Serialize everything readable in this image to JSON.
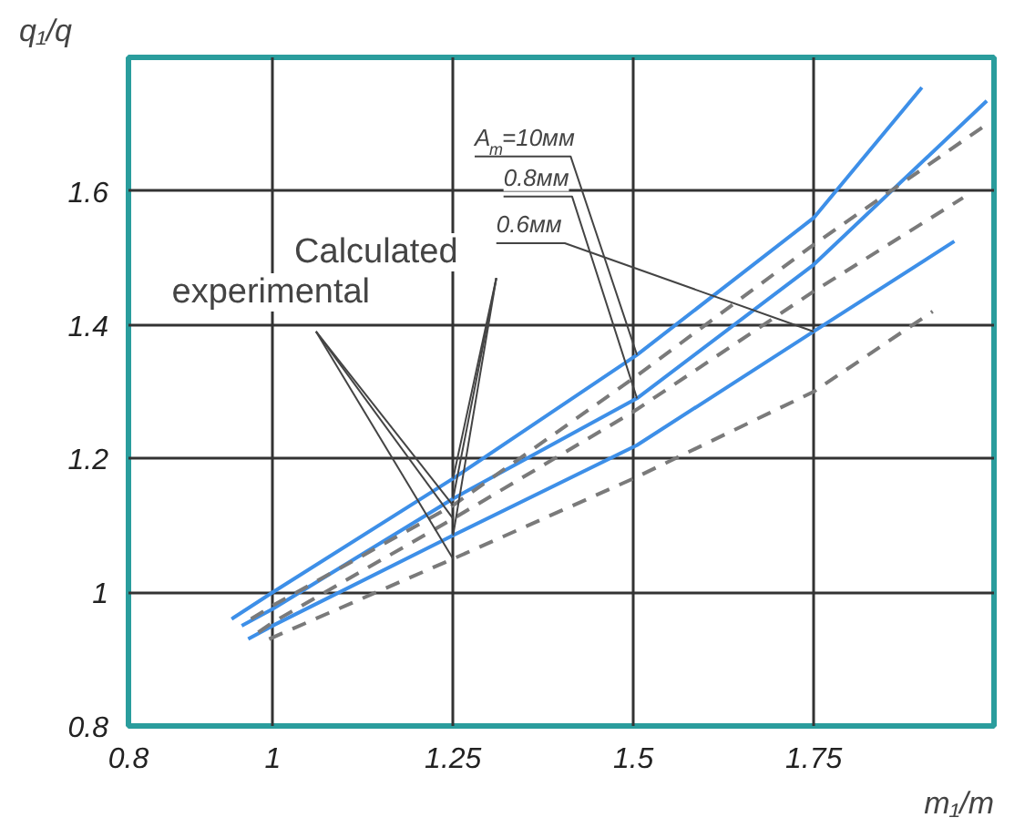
{
  "chart_data": {
    "type": "line",
    "xlabel": "m₁/m",
    "ylabel": "q₁/q",
    "xlim": [
      0.8,
      2.0
    ],
    "xticks": [
      0.8,
      1.0,
      1.25,
      1.5,
      1.75
    ],
    "ylim": [
      0.8,
      1.8
    ],
    "yticks": [
      0.8,
      1.0,
      1.2,
      1.4,
      1.6
    ],
    "grid": true,
    "series": [
      {
        "color": "#3d8fe8",
        "line_style": "solid",
        "x": [
          0.943,
          1.0,
          1.25,
          1.505,
          1.75,
          1.9
        ],
        "values": [
          0.96,
          1.0,
          1.17,
          1.355,
          1.56,
          1.755
        ]
      },
      {
        "color": "#3d8fe8",
        "line_style": "solid",
        "x": [
          0.957,
          1.0,
          1.25,
          1.505,
          1.75,
          1.99
        ],
        "values": [
          0.95,
          0.975,
          1.14,
          1.29,
          1.49,
          1.735
        ]
      },
      {
        "color": "#3d8fe8",
        "line_style": "solid",
        "x": [
          0.966,
          1.0,
          1.25,
          1.505,
          1.75,
          1.945
        ],
        "values": [
          0.93,
          0.95,
          1.085,
          1.22,
          1.39,
          1.525
        ]
      },
      {
        "color": "#7a7a7a",
        "line_style": "dashed",
        "x": [
          0.97,
          1.0,
          1.25,
          1.5,
          1.75,
          1.99
        ],
        "values": [
          0.96,
          0.98,
          1.13,
          1.32,
          1.52,
          1.7
        ]
      },
      {
        "color": "#7a7a7a",
        "line_style": "dashed",
        "x": [
          0.98,
          1.0,
          1.25,
          1.5,
          1.75,
          1.957
        ],
        "values": [
          0.94,
          0.955,
          1.11,
          1.27,
          1.45,
          1.59
        ]
      },
      {
        "color": "#7a7a7a",
        "line_style": "dashed",
        "x": [
          0.995,
          1.25,
          1.5,
          1.75,
          1.915
        ],
        "values": [
          0.93,
          1.05,
          1.17,
          1.3,
          1.42
        ]
      }
    ],
    "annotations": [
      {
        "text": "A$_{m}$=10мм",
        "x": 1.505,
        "y": 1.355
      },
      {
        "text": "0.8мм",
        "x": 1.505,
        "y": 1.29
      },
      {
        "text": "0.6мм",
        "x": 1.75,
        "y": 1.39
      },
      {
        "text": "Calculated",
        "x": 1.25,
        "y": 1.17
      },
      {
        "text": "experimental",
        "x": 1.25,
        "y": 1.13
      }
    ]
  }
}
